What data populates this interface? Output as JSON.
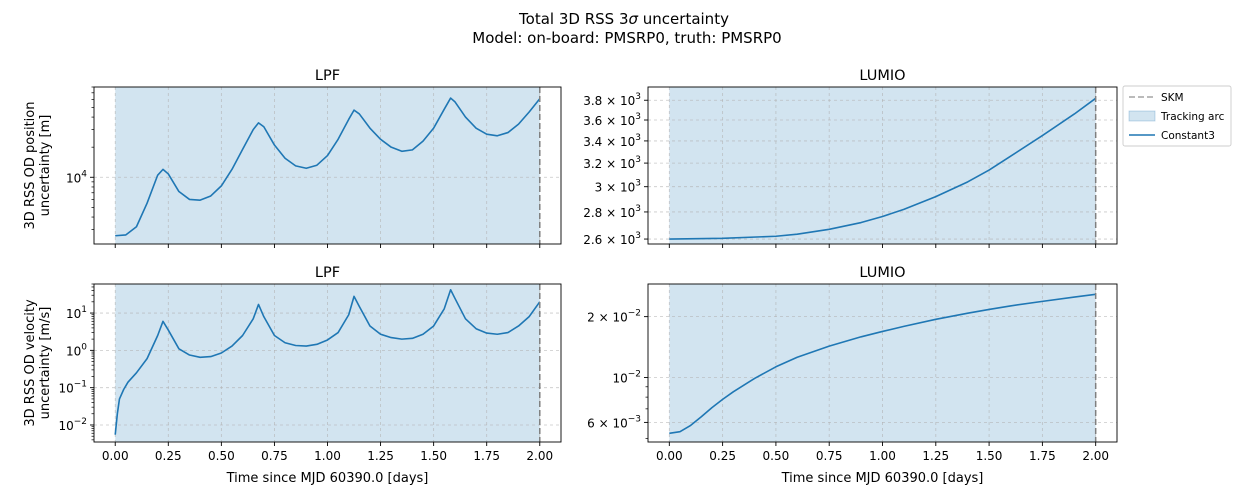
{
  "figure": {
    "title_line1_prefix": "Total 3D RSS 3",
    "title_sigma": "σ",
    "title_line1_suffix": " uncertainty",
    "title_line2": "Model: on-board: PMSRP0, truth: PMSRP0"
  },
  "colors": {
    "series": "#1f77b4",
    "arc_fill": "#1f77b4",
    "skm": "#7f7f7f",
    "grid": "#b0b0b0"
  },
  "legend": {
    "placement": "outside-right-of-top-right-panel",
    "items": [
      {
        "label": "SKM",
        "kind": "dashed-line"
      },
      {
        "label": "Tracking arc",
        "kind": "patch"
      },
      {
        "label": "Constant3",
        "kind": "line"
      }
    ]
  },
  "chart_data": [
    {
      "type": "line",
      "title": "LPF",
      "ylabel_line1": "3D RSS OD position",
      "ylabel_line2": "uncertainty [m]",
      "xlabel": "",
      "xscale": "linear",
      "yscale": "log",
      "xlim": [
        -0.1,
        2.1
      ],
      "ylim": [
        2150,
        80000
      ],
      "xticks": [
        0,
        0.25,
        0.5,
        0.75,
        1.0,
        1.25,
        1.5,
        1.75,
        2.0
      ],
      "xticklabels_visible": false,
      "yticks": [
        {
          "value": 10000,
          "mantissa": "",
          "base": "10",
          "exp": "4"
        }
      ],
      "grid": true,
      "tracking_arc": [
        0,
        2
      ],
      "skm_x": 2.0,
      "series": [
        {
          "name": "Constant3",
          "x": [
            0.0,
            0.05,
            0.1,
            0.15,
            0.2,
            0.225,
            0.25,
            0.3,
            0.35,
            0.4,
            0.45,
            0.5,
            0.55,
            0.6,
            0.65,
            0.675,
            0.7,
            0.75,
            0.8,
            0.85,
            0.9,
            0.95,
            1.0,
            1.05,
            1.1,
            1.125,
            1.15,
            1.2,
            1.25,
            1.3,
            1.35,
            1.4,
            1.45,
            1.5,
            1.55,
            1.58,
            1.6,
            1.65,
            1.7,
            1.75,
            1.8,
            1.85,
            1.9,
            1.95,
            2.0
          ],
          "values": [
            2600,
            2650,
            3200,
            5500,
            10500,
            12000,
            10800,
            7200,
            6000,
            5900,
            6500,
            8200,
            12000,
            19000,
            30000,
            35000,
            32000,
            21000,
            15500,
            13000,
            12300,
            13200,
            16500,
            24000,
            38000,
            47000,
            43000,
            31000,
            24000,
            20000,
            18200,
            18800,
            23000,
            31000,
            48000,
            62000,
            57000,
            40000,
            31000,
            27000,
            26000,
            28000,
            34000,
            45000,
            61000
          ]
        }
      ]
    },
    {
      "type": "line",
      "title": "LUMIO",
      "xlabel": "",
      "ylabel": "",
      "xscale": "linear",
      "yscale": "log",
      "xlim": [
        -0.1,
        2.1
      ],
      "ylim": [
        2565,
        3940
      ],
      "xticks": [
        0,
        0.25,
        0.5,
        0.75,
        1.0,
        1.25,
        1.5,
        1.75,
        2.0
      ],
      "xticklabels_visible": false,
      "yticks": [
        {
          "value": 2600,
          "mantissa": "2.6",
          "base": "10",
          "exp": "3"
        },
        {
          "value": 2800,
          "mantissa": "2.8",
          "base": "10",
          "exp": "3"
        },
        {
          "value": 3000,
          "mantissa": "3",
          "base": "10",
          "exp": "3"
        },
        {
          "value": 3200,
          "mantissa": "3.2",
          "base": "10",
          "exp": "3"
        },
        {
          "value": 3400,
          "mantissa": "3.4",
          "base": "10",
          "exp": "3"
        },
        {
          "value": 3600,
          "mantissa": "3.6",
          "base": "10",
          "exp": "3"
        },
        {
          "value": 3800,
          "mantissa": "3.8",
          "base": "10",
          "exp": "3"
        }
      ],
      "grid": true,
      "tracking_arc": [
        0,
        2
      ],
      "skm_x": 2.0,
      "series": [
        {
          "name": "Constant3",
          "x": [
            0.0,
            0.25,
            0.5,
            0.6,
            0.75,
            0.9,
            1.0,
            1.1,
            1.25,
            1.4,
            1.5,
            1.6,
            1.75,
            1.9,
            2.0
          ],
          "values": [
            2600,
            2605,
            2620,
            2635,
            2670,
            2720,
            2765,
            2820,
            2920,
            3040,
            3140,
            3260,
            3450,
            3660,
            3820
          ]
        }
      ]
    },
    {
      "type": "line",
      "title": "LPF",
      "ylabel_line1": "3D RSS OD velocity",
      "ylabel_line2": "uncertainty [m/s]",
      "xlabel": "Time since MJD 60390.0 [days]",
      "xscale": "linear",
      "yscale": "log",
      "xlim": [
        -0.1,
        2.1
      ],
      "ylim": [
        0.0035,
        60
      ],
      "xticks": [
        0,
        0.25,
        0.5,
        0.75,
        1.0,
        1.25,
        1.5,
        1.75,
        2.0
      ],
      "xticklabels": [
        "0.00",
        "0.25",
        "0.50",
        "0.75",
        "1.00",
        "1.25",
        "1.50",
        "1.75",
        "2.00"
      ],
      "yticks": [
        {
          "value": 0.01,
          "mantissa": "",
          "base": "10",
          "exp": "−2"
        },
        {
          "value": 0.1,
          "mantissa": "",
          "base": "10",
          "exp": "−1"
        },
        {
          "value": 1,
          "mantissa": "",
          "base": "10",
          "exp": "0"
        },
        {
          "value": 10,
          "mantissa": "",
          "base": "10",
          "exp": "1"
        }
      ],
      "grid": true,
      "tracking_arc": [
        0,
        2
      ],
      "skm_x": 2.0,
      "series": [
        {
          "name": "Constant3",
          "x": [
            0.0,
            0.01,
            0.02,
            0.04,
            0.06,
            0.1,
            0.15,
            0.2,
            0.225,
            0.25,
            0.3,
            0.35,
            0.4,
            0.45,
            0.5,
            0.55,
            0.6,
            0.65,
            0.675,
            0.7,
            0.75,
            0.8,
            0.85,
            0.9,
            0.95,
            1.0,
            1.05,
            1.1,
            1.125,
            1.15,
            1.2,
            1.25,
            1.3,
            1.35,
            1.4,
            1.45,
            1.5,
            1.55,
            1.58,
            1.6,
            1.65,
            1.7,
            1.75,
            1.8,
            1.85,
            1.9,
            1.95,
            2.0
          ],
          "values": [
            0.0055,
            0.02,
            0.05,
            0.09,
            0.14,
            0.25,
            0.6,
            2.5,
            6.0,
            3.5,
            1.1,
            0.75,
            0.65,
            0.68,
            0.85,
            1.3,
            2.5,
            7.0,
            17.0,
            8.0,
            2.5,
            1.6,
            1.35,
            1.3,
            1.45,
            1.9,
            3.0,
            9.0,
            28.0,
            15.0,
            4.5,
            2.7,
            2.2,
            2.0,
            2.1,
            2.7,
            4.5,
            13.0,
            42.0,
            25.0,
            7.0,
            3.8,
            2.9,
            2.7,
            3.0,
            4.5,
            8.0,
            20.0
          ]
        }
      ]
    },
    {
      "type": "line",
      "title": "LUMIO",
      "xlabel": "Time since MJD 60390.0 [days]",
      "ylabel": "",
      "xscale": "linear",
      "yscale": "log",
      "xlim": [
        -0.1,
        2.1
      ],
      "ylim": [
        0.0048,
        0.029
      ],
      "xticks": [
        0,
        0.25,
        0.5,
        0.75,
        1.0,
        1.25,
        1.5,
        1.75,
        2.0
      ],
      "xticklabels": [
        "0.00",
        "0.25",
        "0.50",
        "0.75",
        "1.00",
        "1.25",
        "1.50",
        "1.75",
        "2.00"
      ],
      "yticks": [
        {
          "value": 0.006,
          "mantissa": "6",
          "base": "10",
          "exp": "−3"
        },
        {
          "value": 0.01,
          "mantissa": "",
          "base": "10",
          "exp": "−2"
        },
        {
          "value": 0.02,
          "mantissa": "2",
          "base": "10",
          "exp": "−2"
        }
      ],
      "grid": true,
      "tracking_arc": [
        0,
        2
      ],
      "skm_x": 2.0,
      "series": [
        {
          "name": "Constant3",
          "x": [
            0.0,
            0.05,
            0.1,
            0.15,
            0.2,
            0.25,
            0.3,
            0.4,
            0.5,
            0.6,
            0.75,
            0.9,
            1.0,
            1.1,
            1.25,
            1.4,
            1.5,
            1.6,
            1.75,
            1.9,
            2.0
          ],
          "values": [
            0.0053,
            0.0054,
            0.0058,
            0.0064,
            0.0071,
            0.0078,
            0.0085,
            0.0099,
            0.0113,
            0.0126,
            0.0143,
            0.0159,
            0.0169,
            0.0179,
            0.0194,
            0.0208,
            0.0217,
            0.0226,
            0.0238,
            0.025,
            0.0258
          ]
        }
      ]
    }
  ]
}
